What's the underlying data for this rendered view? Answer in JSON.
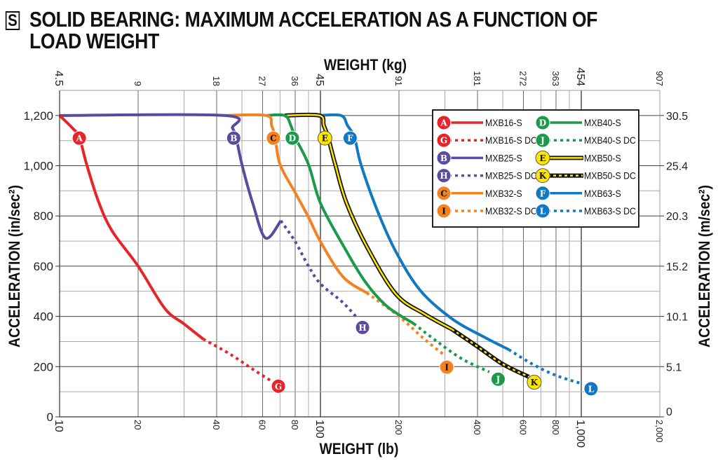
{
  "title": {
    "badge": "S",
    "line1": "SOLID BEARING: MAXIMUM ACCELERATION AS A FUNCTION OF",
    "line2": "LOAD WEIGHT"
  },
  "chart_data": {
    "type": "line",
    "title": "SOLID BEARING: MAXIMUM ACCELERATION AS A FUNCTION OF LOAD WEIGHT",
    "xlabel": "WEIGHT (lb)",
    "x2label": "WEIGHT (kg)",
    "ylabel": "ACCELERATION (in/sec²)",
    "y2label": "ACCELERATION (m/sec²)",
    "xscale": "log",
    "xlim": [
      10,
      2000
    ],
    "ylim": [
      0,
      1300
    ],
    "grid": true,
    "legend_position": "top-right",
    "x_ticks": [
      {
        "value": 10,
        "label": "10"
      },
      {
        "value": 20,
        "label": "20"
      },
      {
        "value": 40,
        "label": "40"
      },
      {
        "value": 60,
        "label": "60"
      },
      {
        "value": 80,
        "label": "80"
      },
      {
        "value": 100,
        "label": "100"
      },
      {
        "value": 200,
        "label": "200"
      },
      {
        "value": 400,
        "label": "400"
      },
      {
        "value": 600,
        "label": "600"
      },
      {
        "value": 800,
        "label": "800"
      },
      {
        "value": 1000,
        "label": "1,000"
      },
      {
        "value": 2000,
        "label": "2,000"
      }
    ],
    "x2_ticks": [
      {
        "value": 10,
        "label": "4.5"
      },
      {
        "value": 20,
        "label": "9"
      },
      {
        "value": 40,
        "label": "18"
      },
      {
        "value": 60,
        "label": "27"
      },
      {
        "value": 80,
        "label": "36"
      },
      {
        "value": 100,
        "label": "45"
      },
      {
        "value": 200,
        "label": "91"
      },
      {
        "value": 400,
        "label": "181"
      },
      {
        "value": 600,
        "label": "272"
      },
      {
        "value": 800,
        "label": "363"
      },
      {
        "value": 1000,
        "label": "454"
      },
      {
        "value": 2000,
        "label": "907"
      }
    ],
    "y_ticks": [
      {
        "value": 0,
        "label": "0"
      },
      {
        "value": 200,
        "label": "200"
      },
      {
        "value": 400,
        "label": "400"
      },
      {
        "value": 600,
        "label": "600"
      },
      {
        "value": 800,
        "label": "800"
      },
      {
        "value": 1000,
        "label": "1,000"
      },
      {
        "value": 1200,
        "label": "1,200"
      }
    ],
    "y2_ticks": [
      {
        "value": 0,
        "label": "0"
      },
      {
        "value": 200,
        "label": "5.1"
      },
      {
        "value": 400,
        "label": "10.1"
      },
      {
        "value": 600,
        "label": "15.2"
      },
      {
        "value": 800,
        "label": "20.3"
      },
      {
        "value": 1000,
        "label": "25.4"
      },
      {
        "value": 1200,
        "label": "30.5"
      }
    ],
    "series": [
      {
        "id": "A",
        "name": "MXB16-S",
        "color": "#e8242b",
        "style": "solid",
        "letter_color": "#ffffff",
        "points": [
          [
            10,
            1200
          ],
          [
            11.2,
            1150
          ],
          [
            11.9,
            1113
          ],
          [
            12.7,
            1005
          ],
          [
            14.1,
            857
          ],
          [
            15.9,
            740
          ],
          [
            20,
            600
          ],
          [
            25.3,
            432
          ],
          [
            30,
            370
          ],
          [
            35.5,
            310
          ]
        ],
        "marker": [
          11.9,
          1110
        ]
      },
      {
        "id": "G",
        "name": "MXB16-S DC",
        "color": "#e8242b",
        "style": "dotted",
        "letter_color": "#ffffff",
        "points": [
          [
            35.5,
            310
          ],
          [
            45,
            250
          ],
          [
            55,
            190
          ],
          [
            65,
            142
          ]
        ],
        "marker": [
          69,
          122
        ]
      },
      {
        "id": "B",
        "name": "MXB25-S",
        "color": "#5b4a9e",
        "style": "solid",
        "letter_color": "#ffffff",
        "points": [
          [
            10,
            1200
          ],
          [
            43,
            1200
          ],
          [
            46,
            1150
          ],
          [
            47.5,
            1113
          ],
          [
            50,
            1005
          ],
          [
            55,
            851
          ],
          [
            61.6,
            712
          ],
          [
            70.5,
            781
          ]
        ],
        "marker": [
          46.5,
          1110
        ]
      },
      {
        "id": "H",
        "name": "MXB25-S DC",
        "color": "#5b4a9e",
        "style": "dotted",
        "letter_color": "#ffffff",
        "points": [
          [
            70.5,
            781
          ],
          [
            80,
            698
          ],
          [
            90,
            600
          ],
          [
            100,
            530
          ],
          [
            122,
            455
          ],
          [
            139,
            391
          ]
        ],
        "marker": [
          145,
          356
        ]
      },
      {
        "id": "C",
        "name": "MXB32-S",
        "color": "#f58220",
        "style": "solid",
        "letter_color": "#111111",
        "points": [
          [
            43,
            1200
          ],
          [
            62,
            1200
          ],
          [
            65,
            1160
          ],
          [
            67,
            1113
          ],
          [
            70,
            1005
          ],
          [
            80,
            893
          ],
          [
            90,
            795
          ],
          [
            100,
            698
          ],
          [
            122,
            558
          ],
          [
            150.5,
            494
          ]
        ],
        "marker": [
          66,
          1110
        ]
      },
      {
        "id": "I",
        "name": "MXB32-S DC",
        "color": "#f58220",
        "style": "dotted",
        "letter_color": "#111111",
        "points": [
          [
            150.5,
            494
          ],
          [
            200,
            400
          ],
          [
            250,
            310
          ],
          [
            297,
            248
          ]
        ],
        "marker": [
          305,
          198
        ]
      },
      {
        "id": "D",
        "name": "MXB40-S",
        "color": "#1a9a4a",
        "style": "solid",
        "letter_color": "#ffffff",
        "points": [
          [
            62,
            1200
          ],
          [
            73,
            1200
          ],
          [
            77,
            1160
          ],
          [
            80,
            1113
          ],
          [
            90,
            1005
          ],
          [
            100,
            851
          ],
          [
            122,
            684
          ],
          [
            148,
            540
          ],
          [
            180,
            440
          ],
          [
            228,
            371
          ]
        ],
        "marker": [
          78,
          1110
        ]
      },
      {
        "id": "J",
        "name": "MXB40-S DC",
        "color": "#1a9a4a",
        "style": "dotted",
        "letter_color": "#ffffff",
        "points": [
          [
            228,
            371
          ],
          [
            280,
            300
          ],
          [
            350,
            230
          ],
          [
            444,
            179
          ]
        ],
        "marker": [
          480,
          150
        ]
      },
      {
        "id": "E",
        "name": "MXB50-S",
        "color": "#ffe600",
        "outline": "#111111",
        "style": "solid",
        "letter_color": "#111111",
        "points": [
          [
            73,
            1200
          ],
          [
            99,
            1200
          ],
          [
            103,
            1160
          ],
          [
            107,
            1113
          ],
          [
            114,
            1005
          ],
          [
            126,
            851
          ],
          [
            152,
            670
          ],
          [
            195,
            488
          ],
          [
            250,
            410
          ],
          [
            319,
            349
          ]
        ],
        "marker": [
          104,
          1110
        ]
      },
      {
        "id": "K",
        "name": "MXB50-S DC",
        "color": "#ffe600",
        "outline": "#111111",
        "style": "dotted",
        "letter_color": "#111111",
        "points": [
          [
            319,
            349
          ],
          [
            400,
            280
          ],
          [
            500,
            210
          ],
          [
            630,
            159
          ]
        ],
        "marker": [
          660,
          138
        ]
      },
      {
        "id": "F",
        "name": "MXB63-S",
        "color": "#1278c2",
        "style": "solid",
        "letter_color": "#ffffff",
        "points": [
          [
            99,
            1200
          ],
          [
            120,
            1200
          ],
          [
            127,
            1160
          ],
          [
            135,
            1113
          ],
          [
            143,
            1005
          ],
          [
            165,
            823
          ],
          [
            195,
            656
          ],
          [
            242,
            502
          ],
          [
            320,
            390
          ],
          [
            420,
            320
          ],
          [
            527,
            268
          ]
        ],
        "marker": [
          130,
          1110
        ]
      },
      {
        "id": "L",
        "name": "MXB63-S DC",
        "color": "#1278c2",
        "style": "dotted",
        "letter_color": "#ffffff",
        "points": [
          [
            527,
            268
          ],
          [
            650,
            210
          ],
          [
            800,
            165
          ],
          [
            1013,
            131
          ]
        ],
        "marker": [
          1090,
          112
        ]
      }
    ]
  }
}
